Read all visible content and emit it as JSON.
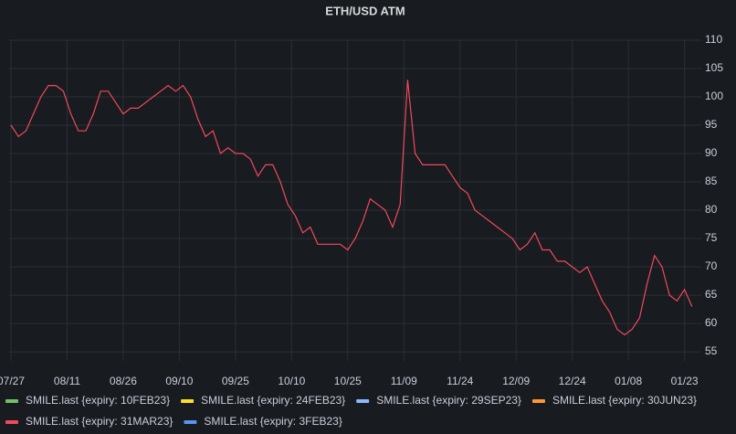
{
  "chart_data": {
    "type": "line",
    "title": "ETH/USD ATM",
    "series": [
      {
        "name": "SMILE.last {expiry: 10FEB23}",
        "color": "#73bf69",
        "x": [],
        "values": []
      },
      {
        "name": "SMILE.last {expiry: 24FEB23}",
        "color": "#fade2a",
        "x": [],
        "values": []
      },
      {
        "name": "SMILE.last {expiry: 29SEP23}",
        "color": "#8ab8ff",
        "x": [],
        "values": []
      },
      {
        "name": "SMILE.last {expiry: 30JUN23}",
        "color": "#ff9830",
        "x": [],
        "values": []
      },
      {
        "name": "SMILE.last {expiry: 31MAR23}",
        "color": "#f2495c",
        "x": [
          "07/27",
          "07/29",
          "07/31",
          "08/02",
          "08/04",
          "08/06",
          "08/08",
          "08/10",
          "08/12",
          "08/14",
          "08/16",
          "08/18",
          "08/20",
          "08/22",
          "08/24",
          "08/26",
          "08/28",
          "08/30",
          "09/01",
          "09/03",
          "09/05",
          "09/07",
          "09/09",
          "09/11",
          "09/13",
          "09/15",
          "09/17",
          "09/19",
          "09/21",
          "09/23",
          "09/25",
          "09/27",
          "09/29",
          "10/01",
          "10/03",
          "10/05",
          "10/07",
          "10/09",
          "10/11",
          "10/13",
          "10/15",
          "10/17",
          "10/19",
          "10/21",
          "10/23",
          "10/25",
          "10/27",
          "10/29",
          "10/31",
          "11/02",
          "11/04",
          "11/06",
          "11/08",
          "11/10",
          "11/12",
          "11/14",
          "11/16",
          "11/18",
          "11/20",
          "11/22",
          "11/24",
          "11/26",
          "11/28",
          "11/30",
          "12/02",
          "12/04",
          "12/06",
          "12/08",
          "12/10",
          "12/12",
          "12/14",
          "12/16",
          "12/18",
          "12/20",
          "12/22",
          "12/24",
          "12/26",
          "12/28",
          "12/30",
          "01/01",
          "01/03",
          "01/05",
          "01/07",
          "01/09",
          "01/11",
          "01/13",
          "01/15",
          "01/17",
          "01/19",
          "01/21",
          "01/23",
          "01/25"
        ],
        "values": [
          95,
          93,
          94,
          97,
          100,
          102,
          102,
          101,
          97,
          94,
          94,
          97,
          101,
          101,
          99,
          97,
          98,
          98,
          99,
          100,
          101,
          102,
          101,
          102,
          100,
          96,
          93,
          94,
          90,
          91,
          90,
          90,
          89,
          86,
          88,
          88,
          85,
          81,
          79,
          76,
          77,
          74,
          74,
          74,
          74,
          73,
          75,
          78,
          82,
          81,
          80,
          77,
          81,
          103,
          90,
          88,
          88,
          88,
          88,
          86,
          84,
          83,
          80,
          79,
          78,
          77,
          76,
          75,
          73,
          74,
          76,
          73,
          73,
          71,
          71,
          70,
          69,
          70,
          67,
          64,
          62,
          59,
          58,
          59,
          61,
          67,
          72,
          70,
          65,
          64,
          66,
          63
        ]
      },
      {
        "name": "SMILE.last {expiry: 3FEB23}",
        "color": "#5794f2",
        "x": [],
        "values": []
      }
    ],
    "xlim": [
      "07/27",
      "01/27"
    ],
    "xticks": [
      "07/27",
      "08/11",
      "08/26",
      "09/10",
      "09/25",
      "10/10",
      "10/25",
      "11/09",
      "11/24",
      "12/09",
      "12/24",
      "01/08",
      "01/23"
    ],
    "ylim": [
      53.4,
      110
    ],
    "yticks": [
      55,
      60,
      65,
      70,
      75,
      80,
      85,
      90,
      95,
      100,
      105,
      110
    ],
    "grid": true
  }
}
